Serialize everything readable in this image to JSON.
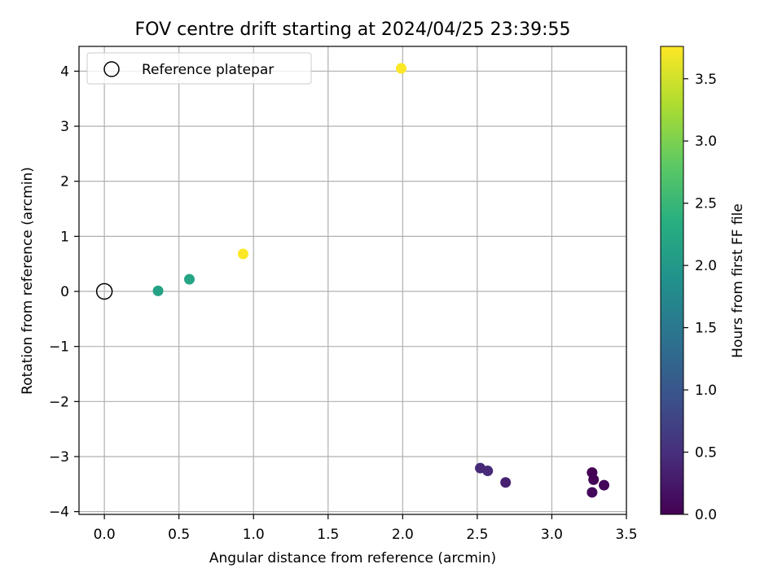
{
  "chart_data": {
    "type": "scatter",
    "title": "FOV centre drift starting at 2024/04/25 23:39:55",
    "xlabel": "Angular distance from reference (arcmin)",
    "ylabel": "Rotation from reference (arcmin)",
    "xlim": [
      -0.17,
      3.5
    ],
    "ylim": [
      -4.05,
      4.45
    ],
    "xticks": [
      0.0,
      0.5,
      1.0,
      1.5,
      2.0,
      2.5,
      3.0,
      3.5
    ],
    "xtick_labels": [
      "0.0",
      "0.5",
      "1.0",
      "1.5",
      "2.0",
      "2.5",
      "3.0",
      "3.5"
    ],
    "yticks": [
      -4,
      -3,
      -2,
      -1,
      0,
      1,
      2,
      3,
      4
    ],
    "ytick_labels": [
      "−4",
      "−3",
      "−2",
      "−1",
      "0",
      "1",
      "2",
      "3",
      "4"
    ],
    "grid": true,
    "reference": {
      "label": "Reference platepar",
      "x": 0.0,
      "y": 0.0
    },
    "legend": {
      "position": "top-left",
      "entries": [
        "Reference platepar"
      ]
    },
    "points": [
      {
        "x": 3.27,
        "y": -3.29,
        "c": 0.0
      },
      {
        "x": 3.28,
        "y": -3.42,
        "c": 0.02
      },
      {
        "x": 3.35,
        "y": -3.52,
        "c": 0.05
      },
      {
        "x": 3.27,
        "y": -3.65,
        "c": 0.07
      },
      {
        "x": 2.69,
        "y": -3.47,
        "c": 0.35
      },
      {
        "x": 2.52,
        "y": -3.21,
        "c": 0.42
      },
      {
        "x": 2.57,
        "y": -3.26,
        "c": 0.45
      },
      {
        "x": 0.36,
        "y": 0.01,
        "c": 2.15
      },
      {
        "x": 0.57,
        "y": 0.22,
        "c": 2.2
      },
      {
        "x": 0.93,
        "y": 0.68,
        "c": 3.75
      },
      {
        "x": 1.99,
        "y": 4.05,
        "c": 3.75
      }
    ],
    "colorbar": {
      "label": "Hours from first FF file",
      "colormap": "viridis",
      "range": [
        0.0,
        3.76
      ],
      "ticks": [
        0.0,
        0.5,
        1.0,
        1.5,
        2.0,
        2.5,
        3.0,
        3.5
      ],
      "tick_labels": [
        "0.0",
        "0.5",
        "1.0",
        "1.5",
        "2.0",
        "2.5",
        "3.0",
        "3.5"
      ]
    }
  }
}
